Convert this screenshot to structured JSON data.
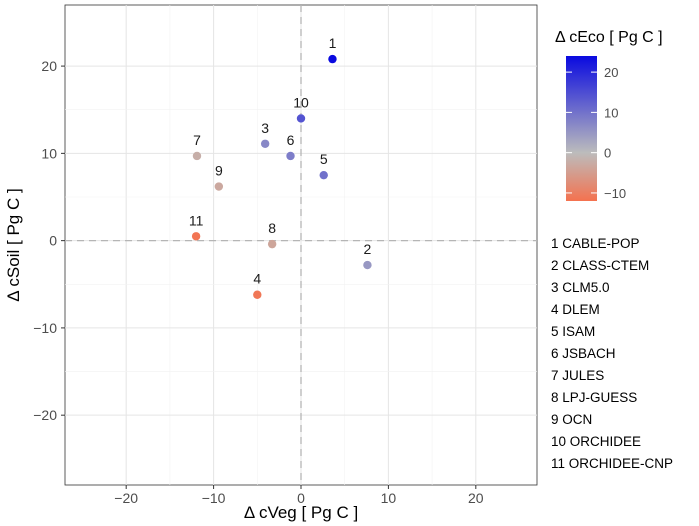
{
  "chart_data": {
    "type": "scatter",
    "xlabel": "Δ  cVeg  [ Pg C ]",
    "ylabel": "Δ  cSoil  [ Pg C ]",
    "xlim": [
      -27,
      27
    ],
    "ylim": [
      -28,
      27
    ],
    "x_ticks": [
      -20,
      -10,
      0,
      10,
      20
    ],
    "y_ticks": [
      -20,
      -10,
      0,
      10,
      20
    ],
    "x_tick_labels": [
      "−20",
      "−10",
      "0",
      "10",
      "20"
    ],
    "y_tick_labels": [
      "−20",
      "−10",
      "0",
      "10",
      "20"
    ],
    "grid": true,
    "reference_lines": {
      "x": 0,
      "y": 0,
      "style": "dashed"
    },
    "color_legend": {
      "title": "Δ  cEco  [ Pg C ]",
      "placement": "top-right",
      "range": [
        -12,
        24
      ],
      "stops": [
        {
          "value": -12,
          "color": "#f4724f"
        },
        {
          "value": 0,
          "color": "#bcbcbc"
        },
        {
          "value": 24,
          "color": "#0a0ae0"
        }
      ],
      "ticks": [
        20,
        10,
        0,
        -10
      ],
      "tick_labels": [
        "20",
        "10",
        "0",
        "−10"
      ]
    },
    "points": [
      {
        "id": "1",
        "model": "CABLE-POP",
        "x": 3.6,
        "y": 20.8,
        "ceco": 24.4
      },
      {
        "id": "2",
        "model": "CLASS-CTEM",
        "x": 7.6,
        "y": -2.8,
        "ceco": 4.8
      },
      {
        "id": "3",
        "model": "CLM5.0",
        "x": -4.1,
        "y": 11.1,
        "ceco": 7.0
      },
      {
        "id": "4",
        "model": "DLEM",
        "x": -5.0,
        "y": -6.2,
        "ceco": -11.2
      },
      {
        "id": "5",
        "model": "ISAM",
        "x": 2.6,
        "y": 7.5,
        "ceco": 10.1
      },
      {
        "id": "6",
        "model": "JSBACH",
        "x": -1.2,
        "y": 9.7,
        "ceco": 8.5
      },
      {
        "id": "7",
        "model": "JULES",
        "x": -11.9,
        "y": 9.7,
        "ceco": -2.2
      },
      {
        "id": "8",
        "model": "LPJ-GUESS",
        "x": -3.3,
        "y": -0.4,
        "ceco": -3.7
      },
      {
        "id": "9",
        "model": "OCN",
        "x": -9.4,
        "y": 6.2,
        "ceco": -3.2
      },
      {
        "id": "10",
        "model": "ORCHIDEE",
        "x": 0.0,
        "y": 14.0,
        "ceco": 14.0
      },
      {
        "id": "11",
        "model": "ORCHIDEE-CNP",
        "x": -12.0,
        "y": 0.5,
        "ceco": -11.5
      }
    ]
  }
}
